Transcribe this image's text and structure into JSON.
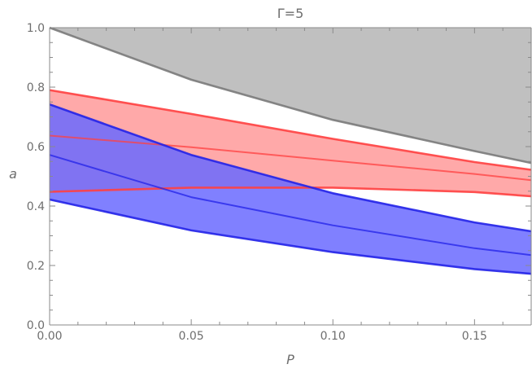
{
  "chart_data": {
    "type": "area",
    "title": "Γ=5",
    "xlabel": "P",
    "ylabel": "a",
    "xlim": [
      0,
      0.17
    ],
    "ylim": [
      0,
      1.0
    ],
    "xticks": [
      0.0,
      0.05,
      0.1,
      0.15
    ],
    "xtick_labels": [
      "0.00",
      "0.05",
      "0.10",
      "0.15"
    ],
    "yticks": [
      0.0,
      0.2,
      0.4,
      0.6,
      0.8,
      1.0
    ],
    "ytick_labels": [
      "0.0",
      "0.2",
      "0.4",
      "0.6",
      "0.8",
      "1.0"
    ],
    "grid": false,
    "x": [
      0.0,
      0.05,
      0.1,
      0.15,
      0.17
    ],
    "series": [
      {
        "color": "#7a7a7a",
        "fill": "#c0c0c0",
        "lower": [
          1.0,
          0.825,
          0.69,
          0.585,
          0.545
        ],
        "upper": [
          1.0,
          1.0,
          1.0,
          1.0,
          1.0
        ]
      },
      {
        "color": "#ff4040",
        "fill": "#ff9a9a",
        "lower": [
          0.448,
          0.462,
          0.462,
          0.447,
          0.433
        ],
        "middle": [
          0.637,
          0.598,
          0.553,
          0.508,
          0.487
        ],
        "upper": [
          0.79,
          0.71,
          0.626,
          0.548,
          0.522
        ]
      },
      {
        "color": "#2222e8",
        "fill": "#6a6aff",
        "lower": [
          0.422,
          0.318,
          0.245,
          0.188,
          0.172
        ],
        "middle": [
          0.572,
          0.43,
          0.335,
          0.258,
          0.235
        ],
        "upper": [
          0.742,
          0.572,
          0.443,
          0.345,
          0.315
        ]
      }
    ]
  }
}
